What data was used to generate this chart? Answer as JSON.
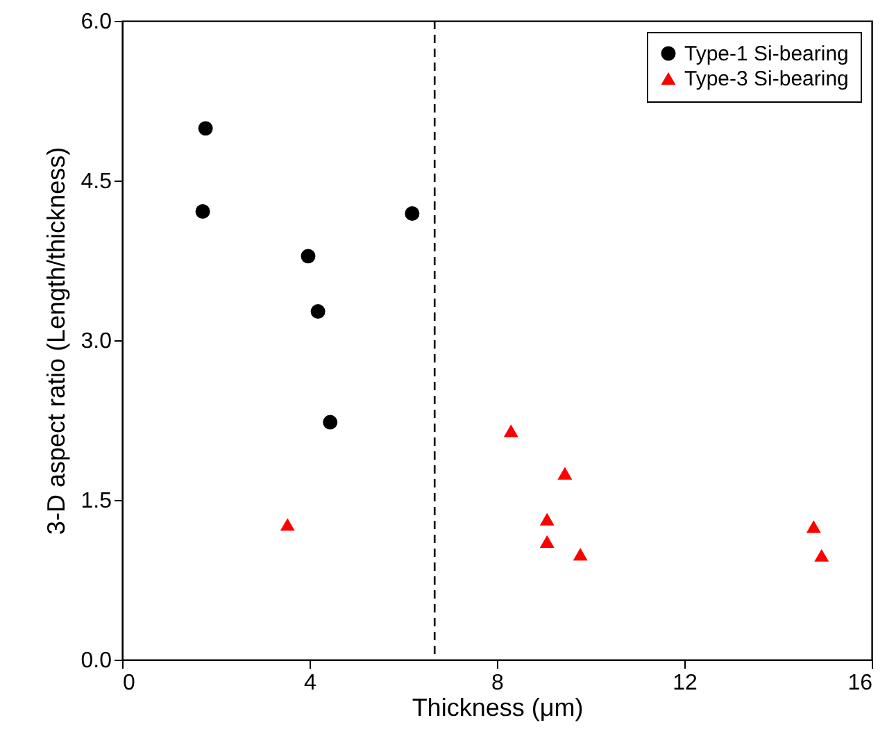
{
  "chart_data": {
    "type": "scatter",
    "xlabel": "Thickness (μm)",
    "ylabel": "3-D aspect ratio (Length/thickness)",
    "xlim": [
      0,
      16
    ],
    "xticks": [
      0,
      4,
      8,
      12,
      16
    ],
    "ylim": [
      0,
      6
    ],
    "yticks": [
      {
        "value": 0,
        "label": "0.0"
      },
      {
        "value": 1.5,
        "label": "1.5"
      },
      {
        "value": 3,
        "label": "3.0"
      },
      {
        "value": 4.5,
        "label": "4.5"
      },
      {
        "value": 6,
        "label": "6.0"
      }
    ],
    "grid": false,
    "legend": "top right",
    "series": [
      {
        "name": "Type-1 Si-bearing",
        "color": "#000000",
        "marker": "circle",
        "x": [
          1.78,
          1.72,
          3.97,
          4.18,
          4.44,
          6.19
        ],
        "values": [
          4.99,
          4.21,
          3.79,
          3.27,
          2.23,
          4.19
        ]
      },
      {
        "name": "Type-3 Si-bearing",
        "color": "#ff0000",
        "marker": "triangle",
        "x": [
          3.53,
          8.3,
          9.45,
          9.07,
          9.07,
          9.78,
          14.76,
          14.93
        ],
        "values": [
          1.27,
          2.15,
          1.75,
          1.32,
          1.11,
          0.99,
          1.25,
          0.98
        ]
      }
    ],
    "ref_lines": [
      {
        "axis": "x",
        "value": 6.67,
        "line_style": "dashed",
        "color": "#000000"
      }
    ]
  }
}
